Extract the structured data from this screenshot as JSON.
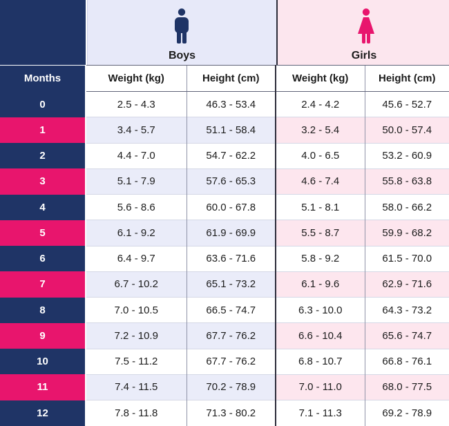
{
  "header": {
    "boys_label": "Boys",
    "girls_label": "Girls",
    "boys_icon": "male-person-icon",
    "girls_icon": "female-person-icon"
  },
  "columns": {
    "months": "Months",
    "boys_weight": "Weight (kg)",
    "boys_height": "Height (cm)",
    "girls_weight": "Weight (kg)",
    "girls_height": "Height (cm)"
  },
  "rows": [
    {
      "month": "0",
      "boys_weight": "2.5 - 4.3",
      "boys_height": "46.3 - 53.4",
      "girls_weight": "2.4 - 4.2",
      "girls_height": "45.6 - 52.7"
    },
    {
      "month": "1",
      "boys_weight": "3.4 - 5.7",
      "boys_height": "51.1 - 58.4",
      "girls_weight": "3.2 - 5.4",
      "girls_height": "50.0 - 57.4"
    },
    {
      "month": "2",
      "boys_weight": "4.4 - 7.0",
      "boys_height": "54.7 - 62.2",
      "girls_weight": "4.0 - 6.5",
      "girls_height": "53.2 - 60.9"
    },
    {
      "month": "3",
      "boys_weight": "5.1 - 7.9",
      "boys_height": "57.6 - 65.3",
      "girls_weight": "4.6 - 7.4",
      "girls_height": "55.8 - 63.8"
    },
    {
      "month": "4",
      "boys_weight": "5.6 - 8.6",
      "boys_height": "60.0 - 67.8",
      "girls_weight": "5.1 - 8.1",
      "girls_height": "58.0 - 66.2"
    },
    {
      "month": "5",
      "boys_weight": "6.1 - 9.2",
      "boys_height": "61.9 - 69.9",
      "girls_weight": "5.5 - 8.7",
      "girls_height": "59.9 - 68.2"
    },
    {
      "month": "6",
      "boys_weight": "6.4 - 9.7",
      "boys_height": "63.6 - 71.6",
      "girls_weight": "5.8 - 9.2",
      "girls_height": "61.5 - 70.0"
    },
    {
      "month": "7",
      "boys_weight": "6.7 - 10.2",
      "boys_height": "65.1 - 73.2",
      "girls_weight": "6.1 - 9.6",
      "girls_height": "62.9 - 71.6"
    },
    {
      "month": "8",
      "boys_weight": "7.0 - 10.5",
      "boys_height": "66.5 - 74.7",
      "girls_weight": "6.3 - 10.0",
      "girls_height": "64.3 - 73.2"
    },
    {
      "month": "9",
      "boys_weight": "7.2 - 10.9",
      "boys_height": "67.7 - 76.2",
      "girls_weight": "6.6 - 10.4",
      "girls_height": "65.6 - 74.7"
    },
    {
      "month": "10",
      "boys_weight": "7.5 - 11.2",
      "boys_height": "67.7 - 76.2",
      "girls_weight": "6.8 - 10.7",
      "girls_height": "66.8 - 76.1"
    },
    {
      "month": "11",
      "boys_weight": "7.4 - 11.5",
      "boys_height": "70.2 - 78.9",
      "girls_weight": "7.0 - 11.0",
      "girls_height": "68.0 - 77.5"
    },
    {
      "month": "12",
      "boys_weight": "7.8 - 11.8",
      "boys_height": "71.3 - 80.2",
      "girls_weight": "7.1 - 11.3",
      "girls_height": "69.2 - 78.9"
    }
  ],
  "colors": {
    "navy": "#1f3466",
    "pink": "#e8156d",
    "boys_tint": "#eaecf9",
    "girls_tint": "#fde6ee"
  }
}
